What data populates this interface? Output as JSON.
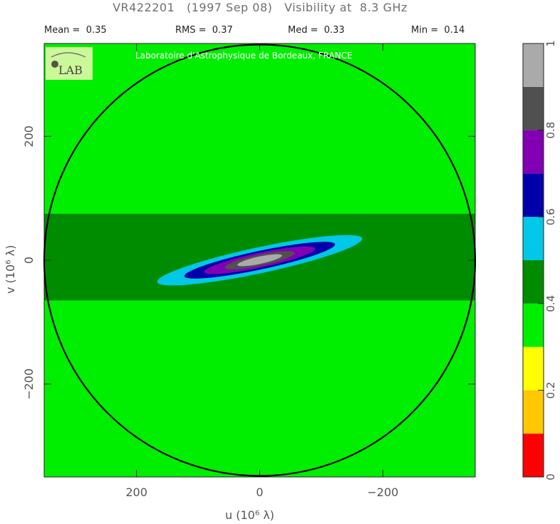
{
  "chart_data": {
    "type": "heatmap",
    "title": "VR422201   (1997 Sep 08)   Visibility at  8.3 GHz",
    "stats": {
      "mean": "Mean =  0.35",
      "rms": "RMS =  0.37",
      "med": "Med =  0.33",
      "min": "Min =  0.14"
    },
    "credit": "Laboratoire d'Astrophysique de Bordeaux, FRANCE",
    "logo_text": "LAB",
    "xlabel": "u  (10⁶ λ)",
    "ylabel": "v  (10⁶ λ)",
    "x_ticks": [
      200,
      0,
      -200
    ],
    "x_tick_labels": [
      "200",
      "0",
      "−200"
    ],
    "y_ticks": [
      200,
      0,
      -200
    ],
    "y_tick_labels": [
      "200",
      "0",
      "−200"
    ],
    "xlim": [
      350,
      -350
    ],
    "ylim": [
      -350,
      350
    ],
    "circle_radius": 350,
    "colorbar": {
      "ticks": [
        0,
        0.2,
        0.4,
        0.6,
        0.8,
        1
      ],
      "tick_labels": [
        "0",
        "0.2",
        "0.4",
        "0.6",
        "0.8",
        "1"
      ],
      "bands": [
        {
          "from": 0.0,
          "to": 0.1,
          "color": "#ff0000"
        },
        {
          "from": 0.1,
          "to": 0.2,
          "color": "#ffc800"
        },
        {
          "from": 0.2,
          "to": 0.3,
          "color": "#ffff00"
        },
        {
          "from": 0.3,
          "to": 0.4,
          "color": "#00ee00"
        },
        {
          "from": 0.4,
          "to": 0.5,
          "color": "#008c00"
        },
        {
          "from": 0.5,
          "to": 0.6,
          "color": "#00c8e6"
        },
        {
          "from": 0.6,
          "to": 0.7,
          "color": "#0000aa"
        },
        {
          "from": 0.7,
          "to": 0.8,
          "color": "#8200b4"
        },
        {
          "from": 0.8,
          "to": 0.9,
          "color": "#505050"
        },
        {
          "from": 0.9,
          "to": 1.0,
          "color": "#aaaaaa"
        }
      ]
    },
    "field": {
      "background": 0.3,
      "core_center": [
        0,
        0
      ],
      "core_angle_deg": 12,
      "core": [
        {
          "level": 0.55,
          "semi_major": 170,
          "semi_minor": 21
        },
        {
          "level": 0.65,
          "semi_major": 125,
          "semi_minor": 15
        },
        {
          "level": 0.75,
          "semi_major": 92,
          "semi_minor": 12
        },
        {
          "level": 0.85,
          "semi_major": 58,
          "semi_minor": 9
        },
        {
          "level": 0.95,
          "semi_major": 37,
          "semi_minor": 6
        }
      ],
      "dark_green_band": {
        "level": 0.45,
        "center_v": 5,
        "half_width_v": 70
      },
      "green_band": {
        "level": 0.35,
        "center_v": 0,
        "half_width_v": 165
      }
    }
  }
}
